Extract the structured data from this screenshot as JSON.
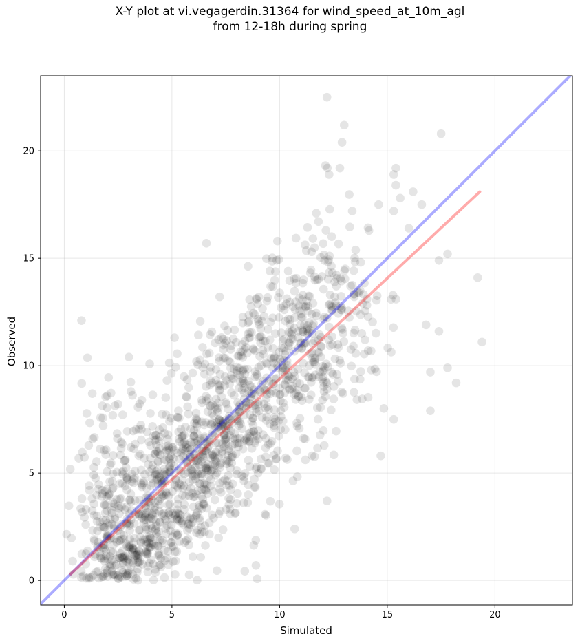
{
  "chart_data": {
    "type": "scatter",
    "title_line1": "X-Y plot at vi.vegagerdin.31364 for wind_speed_at_10m_agl",
    "title_line2": "from 12-18h during spring",
    "xlabel": "Simulated",
    "ylabel": "Observed",
    "xlim": [
      -1.1,
      23.6
    ],
    "ylim": [
      -1.15,
      23.5
    ],
    "xticks": [
      0,
      5,
      10,
      15,
      20
    ],
    "yticks": [
      0,
      5,
      10,
      15,
      20
    ],
    "grid": true,
    "point_color": "#000000",
    "point_opacity": 0.1,
    "reference_line": {
      "label": "1:1 line",
      "color": "#0000ff",
      "opacity": 0.33,
      "x": [
        -1.1,
        23.6
      ],
      "y": [
        -1.1,
        23.6
      ]
    },
    "fit_line": {
      "color": "#ff0000",
      "opacity": 0.33,
      "x": [
        0.3,
        19.3
      ],
      "y": [
        0.3,
        18.1
      ]
    },
    "notable_points": [
      {
        "x": 12.2,
        "y": 22.5
      },
      {
        "x": 13.0,
        "y": 21.2
      },
      {
        "x": 17.5,
        "y": 20.8
      },
      {
        "x": 12.9,
        "y": 20.4
      },
      {
        "x": 15.4,
        "y": 19.2
      },
      {
        "x": 12.8,
        "y": 19.2
      },
      {
        "x": 12.3,
        "y": 18.9
      },
      {
        "x": 15.3,
        "y": 18.9
      },
      {
        "x": 15.4,
        "y": 18.4
      },
      {
        "x": 16.2,
        "y": 18.1
      },
      {
        "x": 15.6,
        "y": 17.8
      },
      {
        "x": 16.6,
        "y": 17.5
      },
      {
        "x": 14.6,
        "y": 17.5
      },
      {
        "x": 15.3,
        "y": 17.2
      },
      {
        "x": 11.7,
        "y": 17.1
      },
      {
        "x": 16.0,
        "y": 16.4
      },
      {
        "x": 6.6,
        "y": 15.7
      },
      {
        "x": 9.9,
        "y": 15.8
      },
      {
        "x": 17.8,
        "y": 15.2
      },
      {
        "x": 17.4,
        "y": 14.9
      },
      {
        "x": 19.2,
        "y": 14.1
      },
      {
        "x": 19.4,
        "y": 11.1
      },
      {
        "x": 17.4,
        "y": 11.6
      },
      {
        "x": 16.8,
        "y": 11.9
      },
      {
        "x": 0.8,
        "y": 12.1
      },
      {
        "x": 17.0,
        "y": 9.7
      },
      {
        "x": 17.8,
        "y": 9.9
      },
      {
        "x": 18.2,
        "y": 9.2
      },
      {
        "x": 17.0,
        "y": 7.9
      },
      {
        "x": 15.3,
        "y": 7.5
      },
      {
        "x": 14.7,
        "y": 5.8
      },
      {
        "x": 12.2,
        "y": 3.7
      },
      {
        "x": 10.7,
        "y": 2.4
      },
      {
        "x": 8.9,
        "y": 0.7
      },
      {
        "x": 1.3,
        "y": 8.7
      },
      {
        "x": 3.0,
        "y": 10.4
      }
    ],
    "cluster_samples": [
      {
        "cx": 3.5,
        "cy": 2.0,
        "sx": 1.3,
        "sy": 1.2,
        "n": 220
      },
      {
        "cx": 5.0,
        "cy": 4.5,
        "sx": 1.6,
        "sy": 1.7,
        "n": 320
      },
      {
        "cx": 7.0,
        "cy": 6.5,
        "sx": 1.6,
        "sy": 2.0,
        "n": 300
      },
      {
        "cx": 9.0,
        "cy": 9.0,
        "sx": 1.6,
        "sy": 2.0,
        "n": 280
      },
      {
        "cx": 11.0,
        "cy": 11.5,
        "sx": 1.5,
        "sy": 2.0,
        "n": 200
      },
      {
        "cx": 13.0,
        "cy": 13.0,
        "sx": 1.2,
        "sy": 2.2,
        "n": 110
      },
      {
        "cx": 2.5,
        "cy": 5.5,
        "sx": 1.0,
        "sy": 2.0,
        "n": 80
      },
      {
        "cx": 1.8,
        "cy": 1.0,
        "sx": 0.8,
        "sy": 0.8,
        "n": 70
      }
    ]
  }
}
